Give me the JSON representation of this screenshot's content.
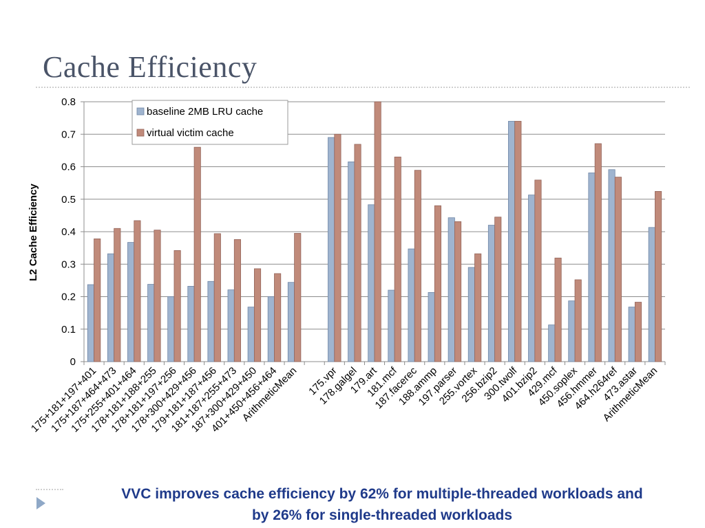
{
  "slide": {
    "title": "Cache Efficiency",
    "footer_line1": "VVC improves cache efficiency by 62% for multiple-threaded workloads and",
    "footer_line2": "by 26% for single-threaded workloads"
  },
  "chart_data": {
    "type": "bar",
    "title": "",
    "xlabel": "",
    "ylabel": "L2 Cache Efficiency",
    "ylim": [
      0,
      0.8
    ],
    "yticks": [
      "0",
      "0.1",
      "0.2",
      "0.3",
      "0.4",
      "0.5",
      "0.6",
      "0.7",
      "0.8"
    ],
    "grid": true,
    "legend_position": "top-left",
    "categories": [
      "175+181+197+401",
      "175+187+464+473",
      "175+255+401+464",
      "178+181+188+255",
      "178+181+197+256",
      "178+300+429+456",
      "179+181+187+456",
      "181+187+255+473",
      "187+300+429+450",
      "401+450+456+464",
      "ArithmeticMean",
      "",
      "175.vpr",
      "178.galgel",
      "179.art",
      "181.mcf",
      "187.facerec",
      "188.ammp",
      "197.parser",
      "255.vortex",
      "256.bzip2",
      "300.twolf",
      "401.bzip2",
      "429.mcf",
      "450.soplex",
      "456.hmmer",
      "464.h264ref",
      "473.astar",
      "ArithmeticMean"
    ],
    "series": [
      {
        "name": "baseline 2MB LRU cache",
        "color": "#9fb4cf",
        "values": [
          0.237,
          0.332,
          0.367,
          0.238,
          0.2,
          0.232,
          0.247,
          0.221,
          0.168,
          0.2,
          0.244,
          null,
          0.69,
          0.615,
          0.483,
          0.22,
          0.347,
          0.213,
          0.443,
          0.29,
          0.42,
          0.74,
          0.513,
          0.113,
          0.187,
          0.581,
          0.591,
          0.168,
          0.413
        ]
      },
      {
        "name": "virtual victim cache",
        "color": "#c08a7a",
        "values": [
          0.378,
          0.41,
          0.434,
          0.405,
          0.342,
          0.66,
          0.394,
          0.376,
          0.286,
          0.271,
          0.395,
          null,
          0.7,
          0.669,
          0.8,
          0.63,
          0.589,
          0.48,
          0.431,
          0.332,
          0.445,
          0.74,
          0.559,
          0.319,
          0.252,
          0.671,
          0.568,
          0.183,
          0.524
        ]
      }
    ]
  }
}
